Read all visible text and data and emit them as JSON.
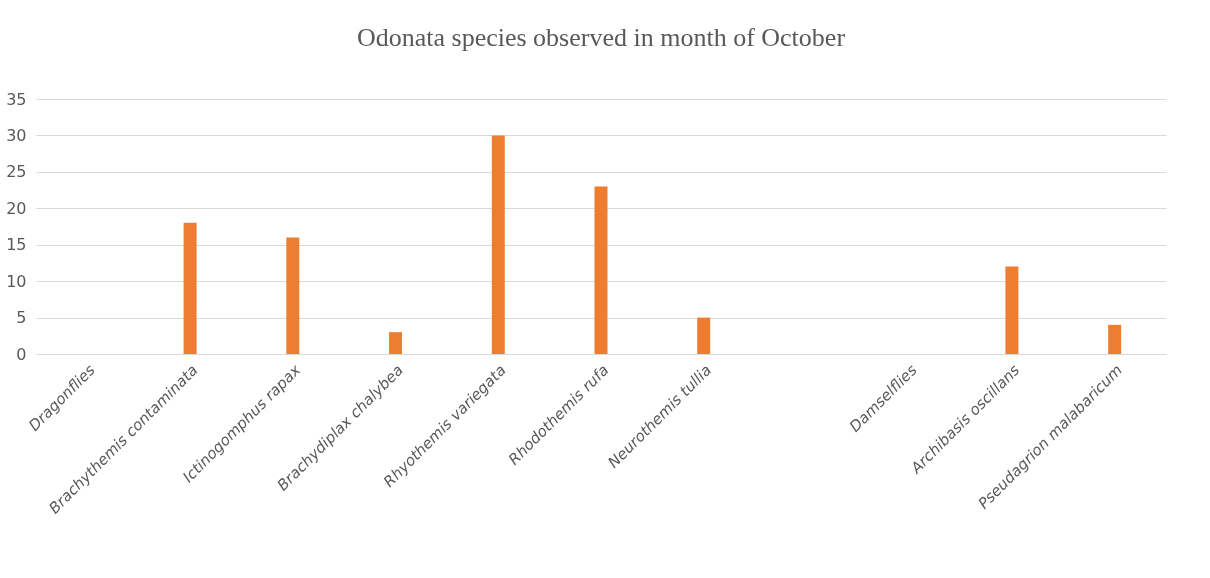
{
  "chart_data": {
    "type": "bar",
    "title": "Odonata species observed in month of October",
    "categories": [
      "Dragonflies",
      "Brachythemis contaminata",
      "Ictinogomphus rapax",
      "Brachydiplax chalybea",
      "Rhyothemis variegata",
      "Rhodothemis rufa",
      "Neurothemis tullia",
      null,
      "Damselflies",
      "Archibasis oscillans",
      "Pseudagrion malabaricum"
    ],
    "values": [
      null,
      18,
      16,
      3,
      30,
      23,
      5,
      null,
      null,
      12,
      4
    ],
    "color": "#ed7d31",
    "ylim": [
      0,
      35
    ],
    "yticks": [
      0,
      5,
      10,
      15,
      20,
      25,
      30,
      35
    ],
    "grid": "y"
  }
}
